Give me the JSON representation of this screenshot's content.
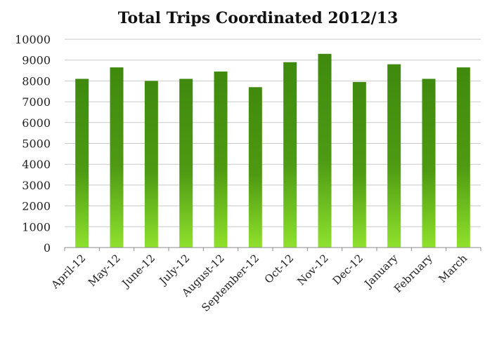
{
  "chart_data": {
    "type": "bar",
    "title": "Total Trips Coordinated 2012/13",
    "xlabel": "",
    "ylabel": "",
    "categories": [
      "April-12",
      "May-12",
      "June-12",
      "July-12",
      "August-12",
      "September-12",
      "Oct-12",
      "Nov-12",
      "Dec-12",
      "January",
      "February",
      "March"
    ],
    "values": [
      8100,
      8650,
      8000,
      8100,
      8450,
      7700,
      8900,
      9300,
      7950,
      8800,
      8100,
      8650
    ],
    "ylim": [
      0,
      10000
    ],
    "yticks": [
      "0",
      "1000",
      "2000",
      "3000",
      "4000",
      "5000",
      "6000",
      "7000",
      "8000",
      "9000",
      "10000"
    ],
    "grid": true,
    "legend": "none",
    "colors": {
      "bar_top": "#3f8a0e",
      "bar_mid": "#4e9a12",
      "bar_bottom": "#8fe12d"
    }
  }
}
